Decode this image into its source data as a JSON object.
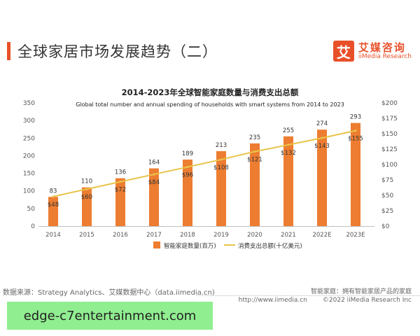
{
  "slide": {
    "title": "全球家居市场发展趋势（二）",
    "brand_name": "艾媒咨询",
    "brand_sub": "iiMedia Research",
    "brand_mark": "艾"
  },
  "chart_data": {
    "type": "bar",
    "title": "2014-2023年全球智能家庭数量与消费支出总额",
    "subtitle": "Global total number and  annual spending of households with smart systems from 2014 to 2023",
    "categories": [
      "2014",
      "2015",
      "2016",
      "2017",
      "2018",
      "2019",
      "2020",
      "2021",
      "2022E",
      "2023E"
    ],
    "series": [
      {
        "name": "智能家庭数量(百万)",
        "type": "bar",
        "axis": "left",
        "values": [
          83,
          110,
          136,
          164,
          189,
          213,
          235,
          255,
          274,
          293
        ],
        "labels": [
          "83",
          "110",
          "136",
          "164",
          "189",
          "213",
          "235",
          "255",
          "274",
          "293"
        ]
      },
      {
        "name": "消费支出总额(十亿美元)",
        "type": "line",
        "axis": "right",
        "values": [
          48,
          60,
          72,
          84,
          96,
          108,
          121,
          132,
          143,
          155
        ],
        "labels": [
          "$48",
          "$60",
          "$72",
          "$84",
          "$96",
          "$108",
          "$121",
          "$132",
          "$143",
          "$155"
        ]
      }
    ],
    "left_axis": {
      "ylim": [
        0,
        350
      ],
      "ticks": [
        "0",
        "50",
        "100",
        "150",
        "200",
        "250",
        "300",
        "350"
      ]
    },
    "right_axis": {
      "ylim": [
        0,
        200
      ],
      "ticks": [
        "$0",
        "$25",
        "$50",
        "$75",
        "$100",
        "$125",
        "$150",
        "$175",
        "$200"
      ]
    },
    "legend_position": "bottom-center",
    "grid": false
  },
  "colors": {
    "bar": "#ed7d31",
    "line": "#e8c54a",
    "accent": "#e8502a"
  },
  "footer": {
    "source": "数据来源：Strategy Analytics、艾媒数据中心（data.iimedia.cn)",
    "note": "智能家庭：拥有智能家居产品的家庭",
    "url": "http://www.iimedia.cn",
    "copyright": "©2022  iiMedia Research  Inc"
  },
  "watermark": {
    "text": "edge-c7entertainment.com"
  }
}
